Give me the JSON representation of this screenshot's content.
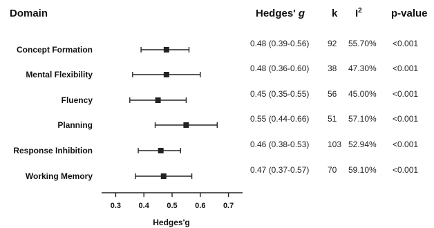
{
  "chart_data": {
    "type": "forest",
    "columns": {
      "domain": "Domain",
      "effect_prefix": "Hedges' ",
      "effect_symbol": "g",
      "k": "k",
      "i2_base": "I",
      "i2_sup": "2",
      "p": "p-value"
    },
    "xlabel": "Hedges'g",
    "xlim": [
      0.25,
      0.75
    ],
    "xticks": [
      0.3,
      0.4,
      0.5,
      0.6,
      0.7
    ],
    "xtick_labels": [
      "0.3",
      "0.4",
      "0.5",
      "0.6",
      "0.7"
    ],
    "rows": [
      {
        "domain": "Concept Formation",
        "g": 0.48,
        "lower": 0.39,
        "upper": 0.56,
        "ci_text": "0.48 (0.39-0.56)",
        "k": "92",
        "i2": "55.70%",
        "p": "<0.001"
      },
      {
        "domain": "Mental Flexibility",
        "g": 0.48,
        "lower": 0.36,
        "upper": 0.6,
        "ci_text": "0.48 (0.36-0.60)",
        "k": "38",
        "i2": "47.30%",
        "p": "<0.001"
      },
      {
        "domain": "Fluency",
        "g": 0.45,
        "lower": 0.35,
        "upper": 0.55,
        "ci_text": "0.45 (0.35-0.55)",
        "k": "56",
        "i2": "45.00%",
        "p": "<0.001"
      },
      {
        "domain": "Planning",
        "g": 0.55,
        "lower": 0.44,
        "upper": 0.66,
        "ci_text": "0.55 (0.44-0.66)",
        "k": "51",
        "i2": "57.10%",
        "p": "<0.001"
      },
      {
        "domain": "Response Inhibition",
        "g": 0.46,
        "lower": 0.38,
        "upper": 0.53,
        "ci_text": "0.46 (0.38-0.53)",
        "k": "103",
        "i2": "52.94%",
        "p": "<0.001"
      },
      {
        "domain": "Working Memory",
        "g": 0.47,
        "lower": 0.37,
        "upper": 0.57,
        "ci_text": "0.47 (0.37-0.57)",
        "k": "70",
        "i2": "59.10%",
        "p": "<0.001"
      }
    ],
    "colors": {
      "marker": "#222222",
      "line": "#222222",
      "text": "#111111"
    }
  }
}
